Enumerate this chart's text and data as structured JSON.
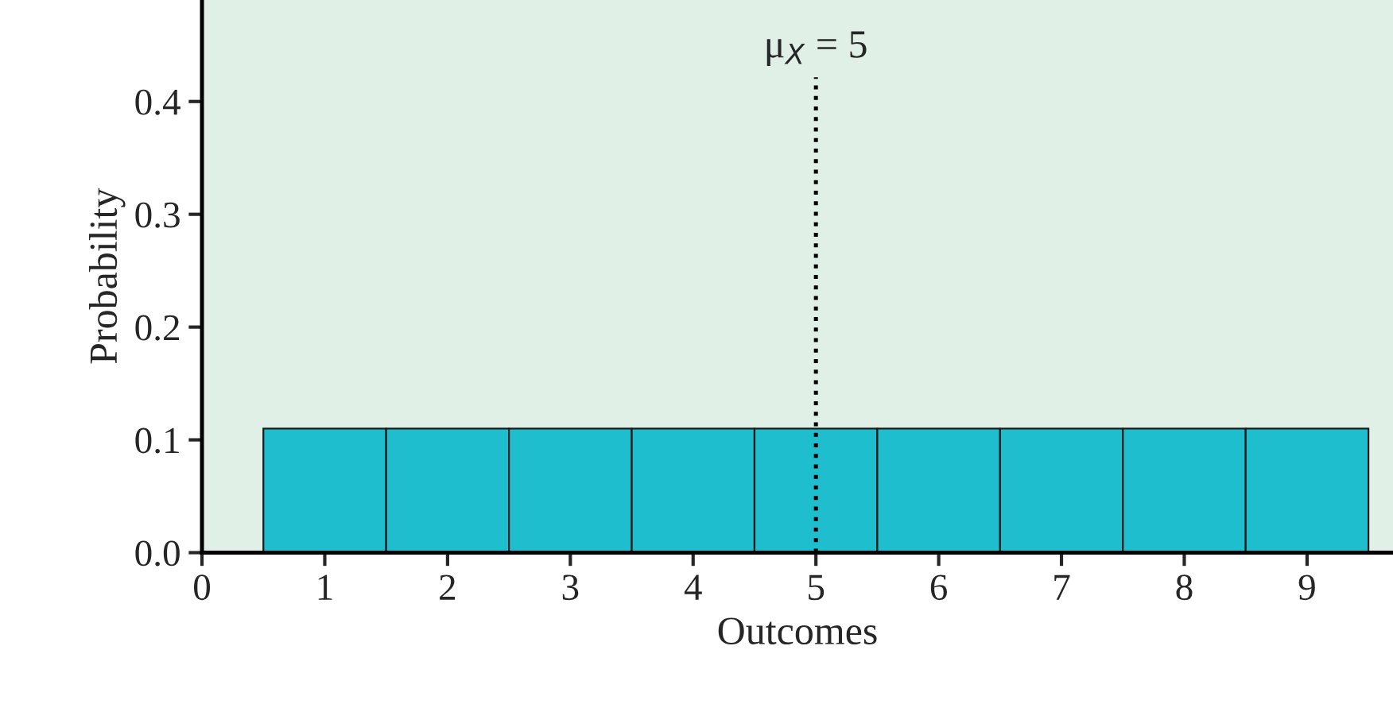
{
  "chart_data": {
    "type": "histogram",
    "xlabel": "Outcomes",
    "ylabel": "Probability",
    "bins": [
      0.5,
      1.5,
      2.5,
      3.5,
      4.5,
      5.5,
      6.5,
      7.5,
      8.5,
      9.5
    ],
    "values": [
      0.11,
      0.11,
      0.11,
      0.11,
      0.11,
      0.11,
      0.11,
      0.11,
      0.11
    ],
    "color": "#1fbecf",
    "xlim": [
      0,
      9.7
    ],
    "xticks": [
      0,
      1,
      2,
      3,
      4,
      5,
      6,
      7,
      8,
      9
    ],
    "ylim": [
      0,
      0.49
    ],
    "yticks": [
      {
        "value": 0,
        "label": "0.0"
      },
      {
        "value": 0.1,
        "label": "0.1"
      },
      {
        "value": 0.2,
        "label": "0.2"
      },
      {
        "value": 0.3,
        "label": "0.3"
      },
      {
        "value": 0.4,
        "label": "0.4"
      }
    ],
    "ref_lines": [
      {
        "axis": "x",
        "value": 5,
        "label": "μ$_{X}$ = 5",
        "line_style": "dotted",
        "color": "#000000"
      }
    ],
    "grid": false,
    "legend": false
  }
}
